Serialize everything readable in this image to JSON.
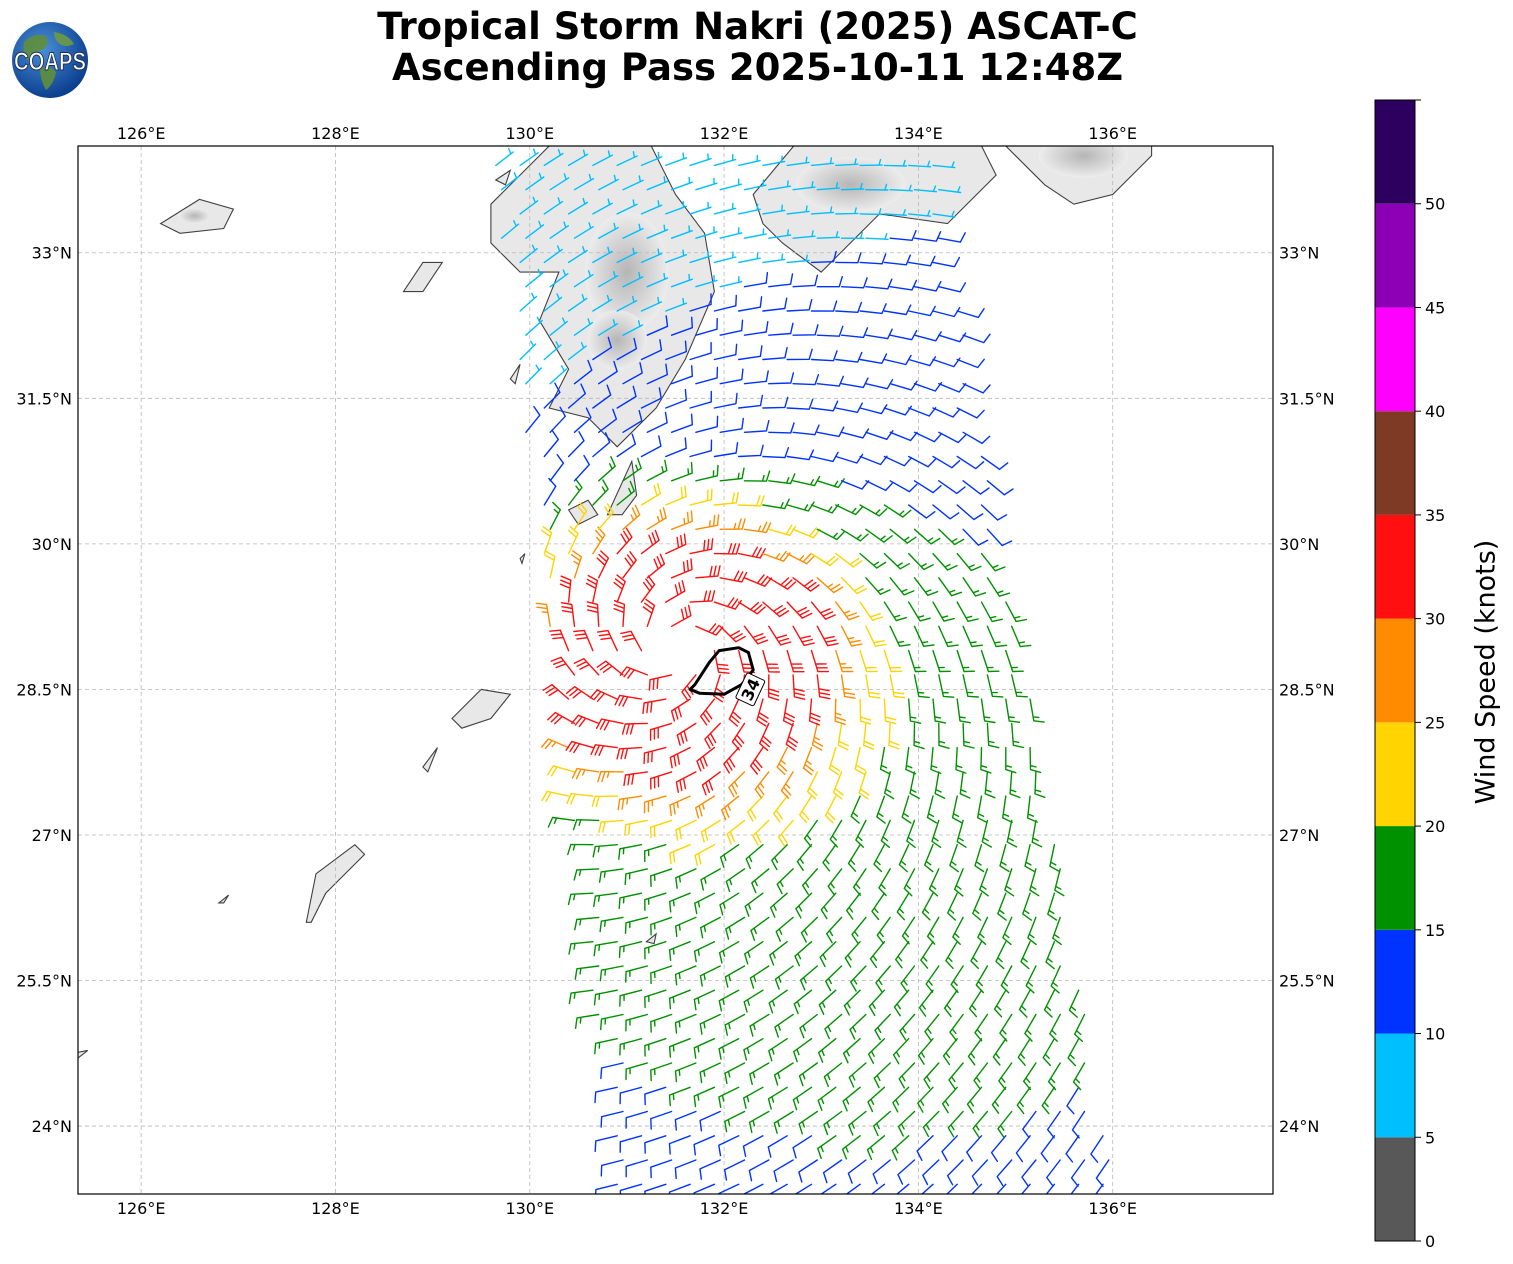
{
  "title": {
    "line1": "Tropical Storm Nakri (2025) ASCAT-C",
    "line2": "Ascending Pass 2025-10-11 12:48Z"
  },
  "logo": {
    "text": "COAPS",
    "icon": "earth-globe-icon"
  },
  "map": {
    "projection": "plate-carree",
    "lon_range": [
      125.35,
      137.65
    ],
    "lat_range": [
      23.3,
      34.1
    ],
    "lon_ticks": [
      126,
      128,
      130,
      132,
      134,
      136
    ],
    "lon_tick_labels": [
      "126°E",
      "128°E",
      "130°E",
      "132°E",
      "134°E",
      "136°E"
    ],
    "lat_ticks": [
      24,
      25.5,
      27,
      28.5,
      30,
      31.5,
      33
    ],
    "lat_tick_labels": [
      "24°N",
      "25.5°N",
      "27°N",
      "28.5°N",
      "30°N",
      "31.5°N",
      "33°N"
    ],
    "gridlines": true,
    "storm_center": {
      "lon": 131.5,
      "lat": 28.95
    },
    "contour": {
      "label": "34",
      "units": "knots"
    }
  },
  "colorbar": {
    "label": "Wind Speed (knots)",
    "ticks": [
      "0",
      "5",
      "10",
      "15",
      "20",
      "25",
      "30",
      "35",
      "40",
      "45",
      "50"
    ],
    "bins": [
      {
        "from": 0,
        "to": 5,
        "color": "#585858"
      },
      {
        "from": 5,
        "to": 10,
        "color": "#00bfff"
      },
      {
        "from": 10,
        "to": 15,
        "color": "#0033ff"
      },
      {
        "from": 15,
        "to": 20,
        "color": "#009100"
      },
      {
        "from": 20,
        "to": 25,
        "color": "#ffd400"
      },
      {
        "from": 25,
        "to": 30,
        "color": "#ff8c00"
      },
      {
        "from": 30,
        "to": 35,
        "color": "#ff0f0f"
      },
      {
        "from": 35,
        "to": 40,
        "color": "#7f3a26"
      },
      {
        "from": 40,
        "to": 45,
        "color": "#ff00ff"
      },
      {
        "from": 45,
        "to": 50,
        "color": "#8b00b4"
      },
      {
        "from": 50,
        "to": 55,
        "color": "#2d0060"
      }
    ]
  }
}
